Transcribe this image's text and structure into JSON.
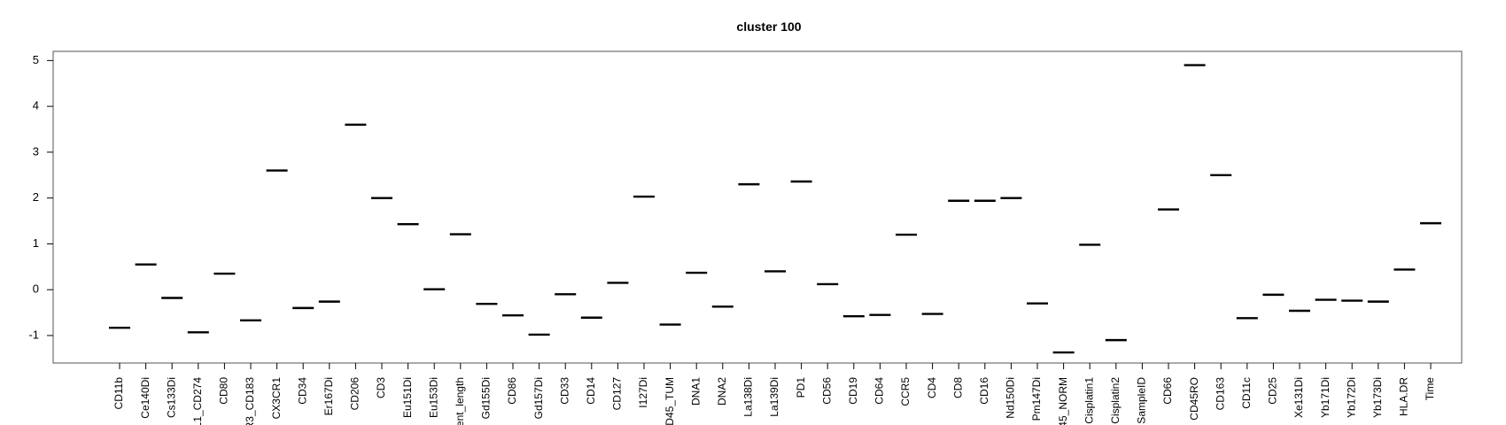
{
  "chart_data": {
    "type": "scatter",
    "title": "cluster 100",
    "xlabel": "",
    "ylabel": "",
    "ylim": [
      -1.6,
      5.2
    ],
    "yticks": [
      -1,
      0,
      1,
      2,
      3,
      4,
      5
    ],
    "grid": false,
    "legend": "none",
    "marker": "horizontal-dash",
    "categories": [
      "CD11b",
      "Ce140Di",
      "Cs133Di",
      "L1_CD274",
      "CD80",
      "R3_CD183",
      "CX3CR1",
      "CD34",
      "Er167Di",
      "CD206",
      "CD3",
      "Eu151Di",
      "Eu153Di",
      "vent_length",
      "Gd155Di",
      "CD86",
      "Gd157Di",
      "CD33",
      "CD14",
      "CD127",
      "I127Di",
      "CD45_TUM",
      "DNA1",
      "DNA2",
      "La138Di",
      "La139Di",
      "PD1",
      "CD56",
      "CD19",
      "CD64",
      "CCR5",
      "CD4",
      "CD8",
      "CD16",
      "Nd150Di",
      "Pm147Di",
      "45_NORM",
      "Cisplatin1",
      "Cisplatin2",
      "SampleID",
      "CD66",
      "CD45RO",
      "CD163",
      "CD11c",
      "CD25",
      "Xe131Di",
      "Yb171Di",
      "Yb172Di",
      "Yb173Di",
      "HLA.DR",
      "Time"
    ],
    "values": [
      -0.83,
      0.55,
      -0.18,
      -0.93,
      0.35,
      -0.67,
      2.6,
      -0.4,
      -0.26,
      3.6,
      2.0,
      1.43,
      0.01,
      1.21,
      -0.31,
      -0.56,
      -0.98,
      -0.1,
      -0.61,
      0.15,
      2.03,
      -0.76,
      0.37,
      -0.37,
      2.3,
      0.4,
      2.36,
      0.12,
      -0.58,
      -0.55,
      1.2,
      -0.53,
      1.94,
      1.94,
      2.0,
      -0.3,
      -1.37,
      0.98,
      -1.1,
      null,
      1.75,
      4.9,
      2.5,
      -0.62,
      -0.11,
      -0.46,
      -0.22,
      -0.24,
      -0.26,
      0.44,
      1.45
    ],
    "colors": {
      "mark": "#000000",
      "frame": "#555555"
    }
  }
}
